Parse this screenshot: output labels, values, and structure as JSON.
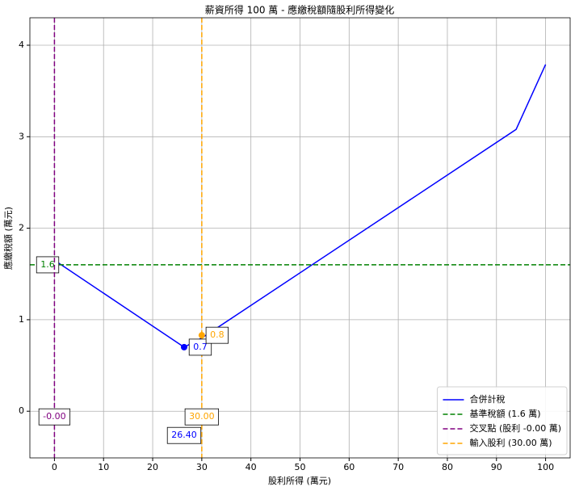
{
  "chart_data": {
    "type": "line",
    "title": "薪資所得 100 萬 - 應繳稅額隨股利所得變化",
    "x_label": "股利所得 (萬元)",
    "y_label": "應繳稅額 (萬元)",
    "xlim": [
      -5,
      105
    ],
    "ylim": [
      -0.51,
      4.3
    ],
    "xticks": [
      0,
      10,
      20,
      30,
      40,
      50,
      60,
      70,
      80,
      90,
      100
    ],
    "yticks": [
      0,
      1,
      2,
      3,
      4
    ],
    "grid": true,
    "legend": "lower right",
    "series": [
      {
        "name": "合併計稅",
        "color": "blue",
        "x": [
          0,
          26.4,
          30,
          94,
          100
        ],
        "values": [
          1.65,
          0.7,
          0.8,
          3.08,
          3.79
        ]
      }
    ],
    "reference_lines": [
      {
        "name": "基準稅額 (1.6 萬)",
        "color": "green",
        "orientation": "horizontal",
        "value": 1.6,
        "label": "1.6"
      },
      {
        "name": "交叉點 (股利 -0.00 萬)",
        "color": "purple",
        "orientation": "vertical",
        "value": 0,
        "label": "-0.00"
      },
      {
        "name": "輸入股利 (30.00 萬)",
        "color": "orange",
        "orientation": "vertical",
        "value": 30,
        "label": "30.00"
      }
    ],
    "points": [
      {
        "x": 26.4,
        "y": 0.7,
        "color": "blue",
        "label": "0.7",
        "x_label": "26.40"
      },
      {
        "x": 30,
        "y": 0.83,
        "color": "orange",
        "label": "0.8"
      }
    ]
  }
}
